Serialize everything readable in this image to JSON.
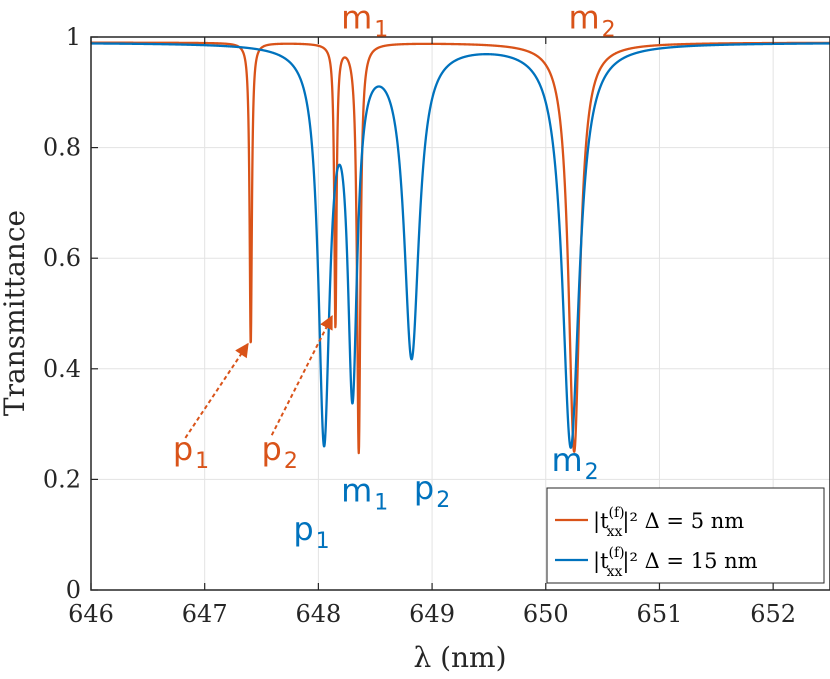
{
  "chart_data": {
    "type": "line",
    "xlabel": "λ (nm)",
    "ylabel": "Transmittance",
    "xlim": [
      646,
      652.5
    ],
    "ylim": [
      0,
      1
    ],
    "xticks": [
      646,
      647,
      648,
      649,
      650,
      651,
      652
    ],
    "yticks": [
      0,
      0.2,
      0.4,
      0.6,
      0.8,
      1
    ],
    "ytick_labels": [
      "0",
      "0.2",
      "0.4",
      "0.6",
      "0.8",
      "1"
    ],
    "grid": true,
    "legend_position": "bottom-right",
    "colors": {
      "orange": "#D95319",
      "blue": "#0072BD"
    },
    "series": [
      {
        "name_main": "|t",
        "name_sup": "(f)",
        "name_sub": "xx",
        "name_tail": "|²   Δ = 5 nm",
        "color": "#D95319",
        "baseline": 0.99,
        "resonances": [
          {
            "x0": 647.405,
            "depth": 0.545,
            "gamma": 0.012
          },
          {
            "x0": 648.15,
            "depth": 0.51,
            "gamma": 0.012
          },
          {
            "x0": 648.355,
            "depth": 0.74,
            "gamma": 0.018
          },
          {
            "x0": 650.25,
            "depth": 0.74,
            "gamma": 0.06
          }
        ]
      },
      {
        "name_main": "|t",
        "name_sup": "(f)",
        "name_sub": "xx",
        "name_tail": "|²   Δ = 15 nm",
        "color": "#0072BD",
        "baseline": 0.99,
        "resonances": [
          {
            "x0": 648.05,
            "depth": 0.7,
            "gamma": 0.06
          },
          {
            "x0": 648.3,
            "depth": 0.6,
            "gamma": 0.05
          },
          {
            "x0": 648.82,
            "depth": 0.56,
            "gamma": 0.08
          },
          {
            "x0": 650.22,
            "depth": 0.73,
            "gamma": 0.09
          }
        ]
      }
    ],
    "annotations": [
      {
        "id": "p1-orange",
        "base": "p",
        "sub": "1",
        "color": "#D95319",
        "x": 646.72,
        "y": 0.235
      },
      {
        "id": "p2-orange",
        "base": "p",
        "sub": "2",
        "color": "#D95319",
        "x": 647.5,
        "y": 0.235
      },
      {
        "id": "m1-orange",
        "base": "m",
        "sub": "1",
        "color": "#D95319",
        "x": 648.2,
        "y": 1.015
      },
      {
        "id": "m2-orange",
        "base": "m",
        "sub": "2",
        "color": "#D95319",
        "x": 650.2,
        "y": 1.015
      },
      {
        "id": "p1-blue",
        "base": "p",
        "sub": "1",
        "color": "#0072BD",
        "x": 647.78,
        "y": 0.09
      },
      {
        "id": "m1-blue",
        "base": "m",
        "sub": "1",
        "color": "#0072BD",
        "x": 648.2,
        "y": 0.16
      },
      {
        "id": "p2-blue",
        "base": "p",
        "sub": "2",
        "color": "#0072BD",
        "x": 648.84,
        "y": 0.165
      },
      {
        "id": "m2-blue",
        "base": "m",
        "sub": "2",
        "color": "#0072BD",
        "x": 650.05,
        "y": 0.215
      }
    ],
    "arrows": [
      {
        "from": [
          646.83,
          0.275
        ],
        "to": [
          647.38,
          0.445
        ],
        "color": "#D95319"
      },
      {
        "from": [
          647.59,
          0.28
        ],
        "to": [
          648.12,
          0.495
        ],
        "color": "#D95319"
      }
    ]
  }
}
